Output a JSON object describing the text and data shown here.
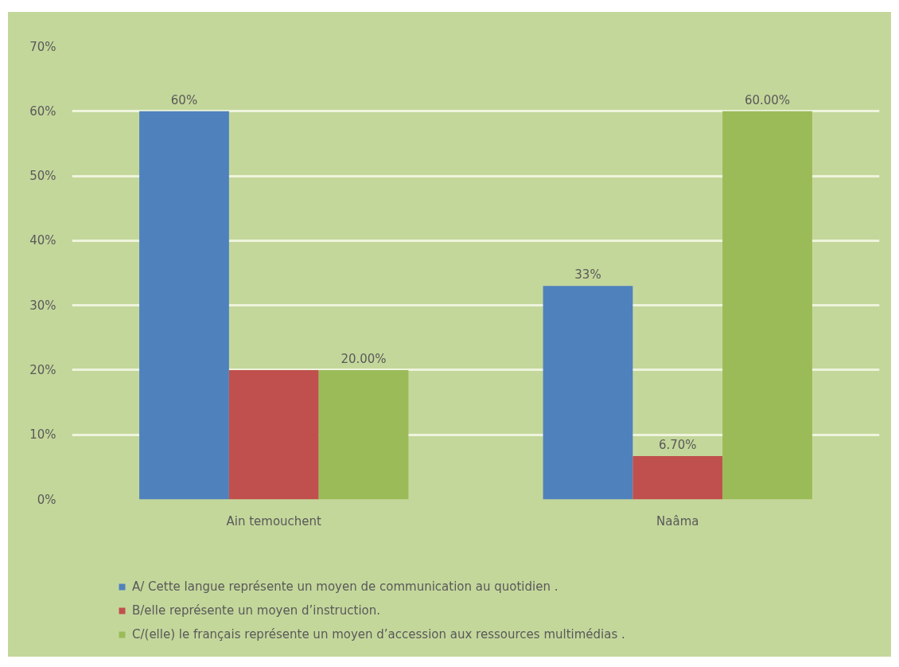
{
  "chart_data": {
    "type": "bar",
    "categories": [
      "Ain temouchent",
      "Naâma"
    ],
    "series": [
      {
        "name": "A/ Cette langue représente un moyen de communication au quotidien .",
        "color": "#4f81bd",
        "values": [
          60,
          33
        ],
        "value_labels": [
          "60%",
          "33%"
        ]
      },
      {
        "name": "B/elle représente un moyen d’instruction.",
        "color": "#c0504d",
        "values": [
          20,
          6.7
        ],
        "value_labels": [
          null,
          "6.70%"
        ]
      },
      {
        "name": "C/(elle) le français représente un moyen d’accession aux ressources multimédias .",
        "color": "#9bbb59",
        "values": [
          20,
          60
        ],
        "value_labels": [
          "20.00%",
          "60.00%"
        ]
      }
    ],
    "ylim": [
      0,
      70
    ],
    "yticks": [
      {
        "value": 0,
        "label": "0%"
      },
      {
        "value": 10,
        "label": "10%"
      },
      {
        "value": 20,
        "label": "20%"
      },
      {
        "value": 30,
        "label": "30%"
      },
      {
        "value": 40,
        "label": "40%"
      },
      {
        "value": 50,
        "label": "50%"
      },
      {
        "value": 60,
        "label": "60%"
      },
      {
        "value": 70,
        "label": "70%"
      }
    ],
    "grid": "y",
    "legend": "bottom"
  }
}
